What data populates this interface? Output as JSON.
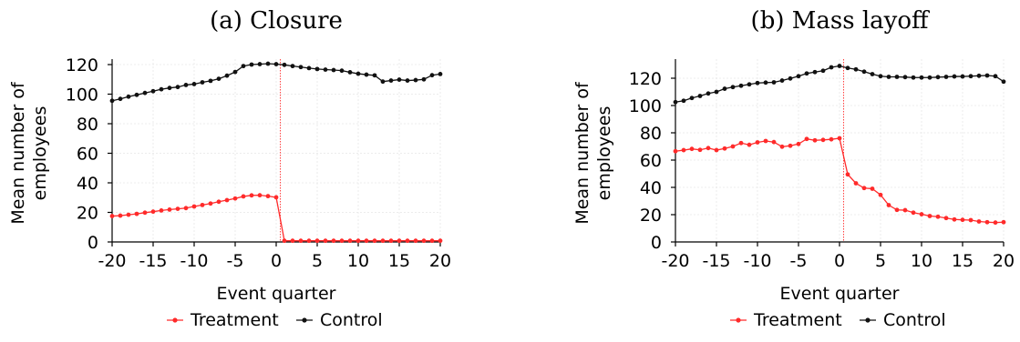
{
  "chart_data": [
    {
      "type": "line",
      "title": "(a) Closure",
      "xlabel": "Event quarter",
      "ylabel": "Mean number of employees",
      "xlim": [
        -20,
        20
      ],
      "ylim": [
        0,
        120
      ],
      "xticks": [
        -20,
        -15,
        -10,
        -5,
        0,
        5,
        10,
        15,
        20
      ],
      "yticks": [
        0,
        20,
        40,
        60,
        80,
        100,
        120
      ],
      "event_line_x": 0.5,
      "grid": true,
      "legend_position": "bottom",
      "x": [
        -20,
        -19,
        -18,
        -17,
        -16,
        -15,
        -14,
        -13,
        -12,
        -11,
        -10,
        -9,
        -8,
        -7,
        -6,
        -5,
        -4,
        -3,
        -2,
        -1,
        0,
        1,
        2,
        3,
        4,
        5,
        6,
        7,
        8,
        9,
        10,
        11,
        12,
        13,
        14,
        15,
        16,
        17,
        18,
        19,
        20
      ],
      "series": [
        {
          "name": "Treatment",
          "color": "#ff2a2a",
          "values": [
            17.5,
            17.8,
            18.4,
            19.0,
            19.8,
            20.5,
            21.3,
            21.9,
            22.4,
            22.9,
            24.0,
            25.0,
            26.0,
            27.2,
            28.3,
            29.4,
            30.8,
            31.5,
            31.6,
            31.0,
            30.2,
            0.8,
            0.8,
            0.8,
            0.8,
            0.8,
            0.8,
            0.8,
            0.8,
            0.8,
            0.8,
            0.8,
            0.8,
            0.8,
            0.8,
            0.8,
            0.8,
            0.8,
            0.8,
            0.8,
            0.8
          ]
        },
        {
          "name": "Control",
          "color": "#111111",
          "values": [
            95.5,
            96.8,
            98.3,
            99.5,
            100.8,
            102.0,
            103.3,
            104.2,
            104.8,
            106.2,
            106.8,
            108.0,
            109.0,
            110.4,
            112.5,
            115.0,
            119.0,
            120.0,
            120.3,
            120.6,
            120.3,
            119.8,
            119.0,
            118.3,
            117.6,
            117.0,
            116.6,
            116.3,
            115.9,
            114.8,
            113.8,
            113.2,
            112.7,
            108.5,
            109.2,
            109.8,
            109.2,
            109.5,
            110.0,
            112.8,
            113.6
          ]
        }
      ]
    },
    {
      "type": "line",
      "title": "(b) Mass layoff",
      "xlabel": "Event quarter",
      "ylabel": "Mean number of employees",
      "xlim": [
        -20,
        20
      ],
      "ylim": [
        0,
        130
      ],
      "xticks": [
        -20,
        -15,
        -10,
        -5,
        0,
        5,
        10,
        15,
        20
      ],
      "yticks": [
        0,
        20,
        40,
        60,
        80,
        100,
        120
      ],
      "event_line_x": 0.5,
      "grid": true,
      "legend_position": "bottom",
      "x": [
        -20,
        -19,
        -18,
        -17,
        -16,
        -15,
        -14,
        -13,
        -12,
        -11,
        -10,
        -9,
        -8,
        -7,
        -6,
        -5,
        -4,
        -3,
        -2,
        -1,
        0,
        1,
        2,
        3,
        4,
        5,
        6,
        7,
        8,
        9,
        10,
        11,
        12,
        13,
        14,
        15,
        16,
        17,
        18,
        19,
        20
      ],
      "series": [
        {
          "name": "Treatment",
          "color": "#ff2a2a",
          "values": [
            66.5,
            67.3,
            68.2,
            67.5,
            68.8,
            67.3,
            68.5,
            70.0,
            72.5,
            71.2,
            73.0,
            74.0,
            73.2,
            69.8,
            70.5,
            71.8,
            75.5,
            74.5,
            74.8,
            75.2,
            76.0,
            49.5,
            43.0,
            39.5,
            39.0,
            34.5,
            27.0,
            23.5,
            23.3,
            21.5,
            20.3,
            19.0,
            18.5,
            17.5,
            16.5,
            16.2,
            16.0,
            15.0,
            14.5,
            14.2,
            14.5
          ]
        },
        {
          "name": "Control",
          "color": "#111111",
          "values": [
            102.5,
            103.5,
            105.5,
            107.0,
            108.8,
            110.0,
            112.3,
            113.5,
            114.5,
            115.5,
            116.5,
            116.8,
            117.0,
            118.3,
            119.8,
            121.5,
            123.5,
            124.5,
            125.5,
            128.0,
            129.0,
            127.5,
            126.5,
            124.8,
            123.0,
            121.5,
            121.0,
            121.0,
            120.8,
            120.5,
            120.5,
            120.5,
            120.8,
            121.0,
            121.3,
            121.3,
            121.5,
            121.8,
            122.0,
            121.5,
            117.5
          ]
        }
      ]
    }
  ]
}
